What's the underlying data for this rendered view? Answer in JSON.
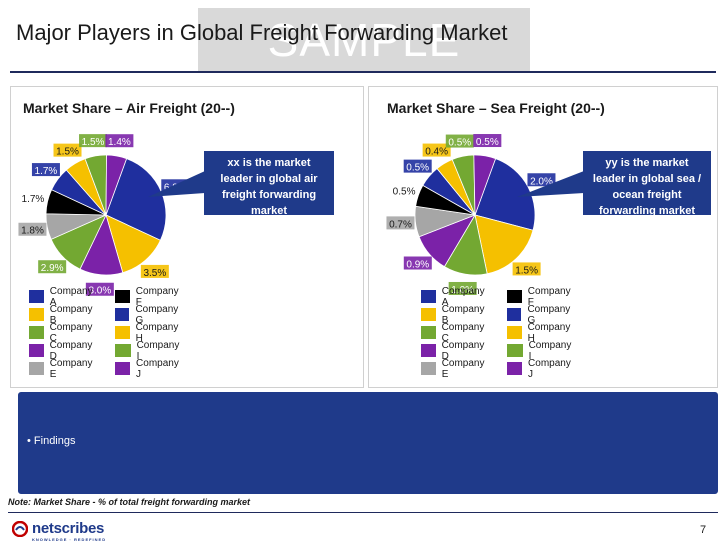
{
  "slide": {
    "watermark": "SAMPLE",
    "title": "Major Players in Global Freight Forwarding Market",
    "findings": "• Findings",
    "note": "Note: Market Share - % of total freight forwarding market",
    "page_number": "7",
    "logo_text": "netscribes",
    "logo_tagline": "KNOWLEDGE · REDEFINED"
  },
  "chart_data": [
    {
      "type": "pie",
      "title": "Market Share – Air Freight (20--)",
      "callout": "xx is the market leader in global air freight forwarding market",
      "slices": [
        {
          "name": "Company A",
          "value": 6.8,
          "label": "6.8%",
          "color": "#1f2f9e"
        },
        {
          "name": "Company H",
          "value": 3.5,
          "label": "3.5%",
          "color": "#f5c000"
        },
        {
          "name": "Company J",
          "value": 3.0,
          "label": "3.0%",
          "color": "#7b22a8"
        },
        {
          "name": "Company I",
          "value": 2.9,
          "label": "2.9%",
          "color": "#73a832"
        },
        {
          "name": "Company E",
          "value": 1.8,
          "label": "1.8%",
          "color": "#a6a6a6"
        },
        {
          "name": "Company F",
          "value": 1.7,
          "label": "1.7%",
          "color": "#000000"
        },
        {
          "name": "Company G",
          "value": 1.7,
          "label": "1.7%",
          "color": "#1f2f9e"
        },
        {
          "name": "Company B",
          "value": 1.5,
          "label": "1.5%",
          "color": "#f5c000"
        },
        {
          "name": "Company C",
          "value": 1.5,
          "label": "1.5%",
          "color": "#73a832"
        },
        {
          "name": "Company D",
          "value": 1.4,
          "label": "1.4%",
          "color": "#7b22a8"
        }
      ],
      "legend": [
        {
          "name": "Company A",
          "color": "#1f2f9e"
        },
        {
          "name": "Company F",
          "color": "#000000"
        },
        {
          "name": "Company B",
          "color": "#f5c000"
        },
        {
          "name": "Company G",
          "color": "#1f2f9e"
        },
        {
          "name": "Company C",
          "color": "#73a832"
        },
        {
          "name": "Company H",
          "color": "#f5c000"
        },
        {
          "name": "Company D",
          "color": "#7b22a8"
        },
        {
          "name": "Company I",
          "color": "#73a832"
        },
        {
          "name": "Company E",
          "color": "#a6a6a6"
        },
        {
          "name": "Company J",
          "color": "#7b22a8"
        }
      ]
    },
    {
      "type": "pie",
      "title": "Market Share – Sea Freight (20--)",
      "callout": "yy is the market leader in global sea / ocean freight forwarding market",
      "slices": [
        {
          "name": "Company A",
          "value": 2.0,
          "label": "2.0%",
          "color": "#1f2f9e"
        },
        {
          "name": "Company H",
          "value": 1.5,
          "label": "1.5%",
          "color": "#f5c000"
        },
        {
          "name": "Company I",
          "value": 1.0,
          "label": "1.0%",
          "color": "#73a832"
        },
        {
          "name": "Company J",
          "value": 0.9,
          "label": "0.9%",
          "color": "#7b22a8"
        },
        {
          "name": "Company E",
          "value": 0.7,
          "label": "0.7%",
          "color": "#a6a6a6"
        },
        {
          "name": "Company F",
          "value": 0.5,
          "label": "0.5%",
          "color": "#000000"
        },
        {
          "name": "Company G",
          "value": 0.5,
          "label": "0.5%",
          "color": "#1f2f9e"
        },
        {
          "name": "Company B",
          "value": 0.4,
          "label": "0.4%",
          "color": "#f5c000"
        },
        {
          "name": "Company C",
          "value": 0.5,
          "label": "0.5%",
          "color": "#73a832"
        },
        {
          "name": "Company D",
          "value": 0.5,
          "label": "0.5%",
          "color": "#7b22a8"
        }
      ],
      "legend": [
        {
          "name": "Company A",
          "color": "#1f2f9e"
        },
        {
          "name": "Company F",
          "color": "#000000"
        },
        {
          "name": "Company B",
          "color": "#f5c000"
        },
        {
          "name": "Company G",
          "color": "#1f2f9e"
        },
        {
          "name": "Company C",
          "color": "#73a832"
        },
        {
          "name": "Company H",
          "color": "#f5c000"
        },
        {
          "name": "Company D",
          "color": "#7b22a8"
        },
        {
          "name": "Company I",
          "color": "#73a832"
        },
        {
          "name": "Company E",
          "color": "#a6a6a6"
        },
        {
          "name": "Company J",
          "color": "#7b22a8"
        }
      ]
    }
  ]
}
